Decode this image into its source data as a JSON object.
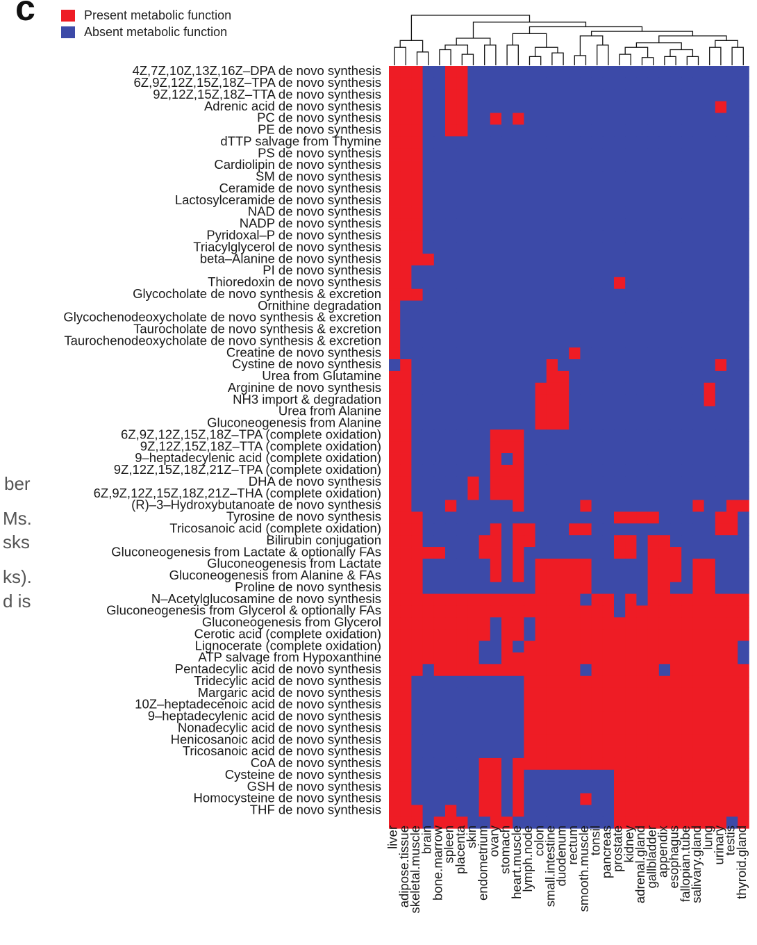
{
  "panel_letter": "c",
  "legend": [
    {
      "label": "Present metabolic function",
      "color": "#ee1c25"
    },
    {
      "label": "Absent metabolic function",
      "color": "#3c4aa8"
    }
  ],
  "caption_fragments": [
    "ber",
    "Ms.",
    "sks",
    "ks).",
    "d is"
  ],
  "chart_data": {
    "type": "heatmap",
    "colors": {
      "present": "#ee1c25",
      "absent": "#3c4aa8"
    },
    "legend_placement": "top-left",
    "column_dendrogram": true,
    "columns": [
      "liver",
      "adipose.tissue",
      "skeletal.muscle",
      "brain",
      "bone.marrow",
      "spleen",
      "placenta",
      "skin",
      "endometrium",
      "ovary",
      "stomach",
      "heart.muscle",
      "lymph.node",
      "colon",
      "small.intestine",
      "duodenum",
      "rectum",
      "smooth.muscle",
      "tonsil",
      "pancreas",
      "prostate",
      "kidney",
      "adrenal.gland",
      "gallbladder",
      "appendix",
      "esophagus",
      "fallopian.tube",
      "salivary.gland",
      "lung",
      "urinary",
      "testis",
      "thyroid.gland"
    ],
    "rows": [
      {
        "label": "4Z,7Z,10Z,13Z,16Z–DPA de novo synthesis",
        "values": "11100110000000000000000000000000"
      },
      {
        "label": "6Z,9Z,12Z,15Z,18Z–TPA de novo synthesis",
        "values": "11100110000000000000000000000000"
      },
      {
        "label": "9Z,12Z,15Z,18Z–TTA de novo synthesis",
        "values": "11100110000000000000000000000000"
      },
      {
        "label": "Adrenic acid de novo synthesis",
        "values": "11100110000000000000000000000100"
      },
      {
        "label": "PC de novo synthesis",
        "values": "11100110010100000000000000000000"
      },
      {
        "label": "PE de novo synthesis",
        "values": "11100110000000000000000000000000"
      },
      {
        "label": "dTTP salvage from Thymine",
        "values": "11100000000000000000000000000000"
      },
      {
        "label": "PS de novo synthesis",
        "values": "11100000000000000000000000000000"
      },
      {
        "label": "Cardiolipin de novo synthesis",
        "values": "11100000000000000000000000000000"
      },
      {
        "label": "SM de novo synthesis",
        "values": "11100000000000000000000000000000"
      },
      {
        "label": "Ceramide de novo synthesis",
        "values": "11100000000000000000000000000000"
      },
      {
        "label": "Lactosylceramide de novo synthesis",
        "values": "11100000000000000000000000000000"
      },
      {
        "label": "NAD de novo synthesis",
        "values": "11100000000000000000000000000000"
      },
      {
        "label": "NADP de novo synthesis",
        "values": "11100000000000000000000000000000"
      },
      {
        "label": "Pyridoxal–P de novo synthesis",
        "values": "11100000000000000000000000000000"
      },
      {
        "label": "Triacylglycerol de novo synthesis",
        "values": "11100000000000000000000000000000"
      },
      {
        "label": "beta–Alanine de novo synthesis",
        "values": "11110000000000000000000000000000"
      },
      {
        "label": "PI de novo synthesis",
        "values": "11000000000000000000000000000000"
      },
      {
        "label": "Thioredoxin de novo synthesis",
        "values": "11000000000000000000100000000000"
      },
      {
        "label": "Glycocholate de novo synthesis & excretion",
        "values": "11100000000000000000000000000000"
      },
      {
        "label": "Ornithine degradation",
        "values": "10000000000000000000000000000000"
      },
      {
        "label": "Glycochenodeoxycholate de novo synthesis & excretion",
        "values": "10000000000000000000000000000000"
      },
      {
        "label": "Taurocholate de novo synthesis & excretion",
        "values": "10000000000000000000000000000000"
      },
      {
        "label": "Taurochenodeoxycholate de novo synthesis & excretion",
        "values": "10000000000000000000000000000000"
      },
      {
        "label": "Creatine de novo synthesis",
        "values": "10000000000000001000000000000000"
      },
      {
        "label": "Cystine de novo synthesis",
        "values": "01000000000000100000000000000100"
      },
      {
        "label": "Urea from Glutamine",
        "values": "11000000000000110000000000000000"
      },
      {
        "label": "Arginine de novo synthesis",
        "values": "11000000000001110000000000001000"
      },
      {
        "label": "NH3 import & degradation",
        "values": "11000000000001110000000000001000"
      },
      {
        "label": "Urea from Alanine",
        "values": "11000000000001110000000000000000"
      },
      {
        "label": "Gluconeogenesis from Alanine",
        "values": "11000000000001110000000000000000"
      },
      {
        "label": "6Z,9Z,12Z,15Z,18Z–TPA (complete oxidation)",
        "values": "11000000011100000000000000000000"
      },
      {
        "label": "9Z,12Z,15Z,18Z–TTA (complete oxidation)",
        "values": "11000000011100000000000000000000"
      },
      {
        "label": "9–heptadecylenic acid (complete oxidation)",
        "values": "11000000010100000000000000000000"
      },
      {
        "label": "9Z,12Z,15Z,18Z,21Z–TPA (complete oxidation)",
        "values": "11000000011100000000000000000000"
      },
      {
        "label": "DHA de novo synthesis",
        "values": "11000001011100000000000000000000"
      },
      {
        "label": "6Z,9Z,12Z,15Z,18Z,21Z–THA (complete oxidation)",
        "values": "11000001011100000000000000000000"
      },
      {
        "label": "(R)–3–Hydroxybutanoate de novo synthesis",
        "values": "11000100000100000100000000010011"
      },
      {
        "label": "Tyrosine de novo synthesis",
        "values": "11100000000000000000111100000110"
      },
      {
        "label": "Tricosanoic acid (complete oxidation)",
        "values": "11100000010110001100000000000110"
      },
      {
        "label": "Bilirubin conjugation",
        "values": "11100000110110000000110110000000"
      },
      {
        "label": "Gluconeogenesis from Lactate & optionally FAs",
        "values": "11111000110100000000110111000000"
      },
      {
        "label": "Gluconeogenesis from Lactate",
        "values": "11100000010101111100000111011000"
      },
      {
        "label": "Gluconeogenesis from Alanine & FAs",
        "values": "11100000010101111100000111011000"
      },
      {
        "label": "Proline de novo synthesis",
        "values": "11100000000001111100000110011000"
      },
      {
        "label": "N–Acetylglucosamine de novo synthesis",
        "values": "11111111111111111011010111111111"
      },
      {
        "label": "Gluconeogenesis from Glycerol & optionally FAs",
        "values": "11111111111111111111011111111111"
      },
      {
        "label": "Gluconeogenesis from Glycerol",
        "values": "11111111101101111111111111111111"
      },
      {
        "label": "Cerotic acid (complete oxidation)",
        "values": "11111111101101111111111111111111"
      },
      {
        "label": "Lignocerate (complete oxidation)",
        "values": "11111111001011111111111111111110"
      },
      {
        "label": "ATP salvage from Hypoxanthine",
        "values": "11111111001111111111111111111110"
      },
      {
        "label": "Pentadecylic acid de novo synthesis",
        "values": "11101111111111111011111101111111"
      },
      {
        "label": "Tridecylic acid de novo synthesis",
        "values": "11000000000011111111111111111111"
      },
      {
        "label": "Margaric acid de novo synthesis",
        "values": "11000000000011111111111111111111"
      },
      {
        "label": "10Z–heptadecenoic acid de novo synthesis",
        "values": "11000000000011111111111111111111"
      },
      {
        "label": "9–heptadecylenic acid de novo synthesis",
        "values": "11000000000011111111111111111111"
      },
      {
        "label": "Nonadecylic acid de novo synthesis",
        "values": "11000000000011111111111111111111"
      },
      {
        "label": "Henicosanoic acid de novo synthesis",
        "values": "11000000000011111111111111111111"
      },
      {
        "label": "Tricosanoic acid de novo synthesis",
        "values": "11000000000011111111111111111111"
      },
      {
        "label": "CoA de novo synthesis",
        "values": "11000000110111111111111111111111"
      },
      {
        "label": "Cysteine de novo synthesis",
        "values": "11000000110100000000111111111111"
      },
      {
        "label": "GSH de novo synthesis",
        "values": "11000000110100000000111111111111"
      },
      {
        "label": "Homocysteine de novo synthesis",
        "values": "11000000110100000100111111111111"
      },
      {
        "label": "THF de novo synthesis",
        "values": "11100100110100000000111111111111"
      },
      {
        "label": "",
        "values": "11101110011000000000111111111101"
      }
    ],
    "dendrogram_links": [
      {
        "l": 0,
        "r": 1,
        "h": 0.3
      },
      {
        "l": 2,
        "r": 3,
        "h": 0.2
      },
      {
        "l": "0-1",
        "r": "2-3",
        "h": 0.45
      },
      {
        "l": 4,
        "r": 5,
        "h": 0.25
      },
      {
        "l": 6,
        "r": 7,
        "h": 0.15
      },
      {
        "l": "4-5",
        "r": "6-7",
        "h": 0.35
      },
      {
        "l": 8,
        "r": 9,
        "h": 0.35
      },
      {
        "l": "4-7",
        "r": "8-9",
        "h": 0.5
      },
      {
        "l": 10,
        "r": 11,
        "h": 0.35
      },
      {
        "l": 12,
        "r": 13,
        "h": 0.1
      },
      {
        "l": 14,
        "r": 15,
        "h": 0.18
      },
      {
        "l": "12-13",
        "r": "14-15",
        "h": 0.3
      },
      {
        "l": "10-11",
        "r": "12-15",
        "h": 0.6
      },
      {
        "l": 16,
        "r": 17,
        "h": 0.12
      },
      {
        "l": 18,
        "r": 19,
        "h": 0.35
      },
      {
        "l": "16-17",
        "r": "18-19",
        "h": 0.55
      },
      {
        "l": 20,
        "r": 21,
        "h": 0.15
      },
      {
        "l": 22,
        "r": 23,
        "h": 0.08
      },
      {
        "l": "20-21",
        "r": "22-23",
        "h": 0.3
      },
      {
        "l": 24,
        "r": 25,
        "h": 0.1
      },
      {
        "l": 26,
        "r": 27,
        "h": 0.1
      },
      {
        "l": "24-25",
        "r": "26-27",
        "h": 0.25
      },
      {
        "l": "20-23",
        "r": "24-27",
        "h": 0.4
      },
      {
        "l": 28,
        "r": 29,
        "h": 0.3
      },
      {
        "l": 30,
        "r": 31,
        "h": 0.3
      },
      {
        "l": "28-29",
        "r": "30-31",
        "h": 0.45
      },
      {
        "l": "20-27",
        "r": "28-31",
        "h": 0.55
      },
      {
        "l": "16-19",
        "r": "20-31",
        "h": 0.65
      },
      {
        "l": "10-15",
        "r": "16-31",
        "h": 0.75
      },
      {
        "l": "4-9",
        "r": "10-31",
        "h": 0.85
      },
      {
        "l": "0-3",
        "r": "4-31",
        "h": 1.0
      }
    ]
  }
}
